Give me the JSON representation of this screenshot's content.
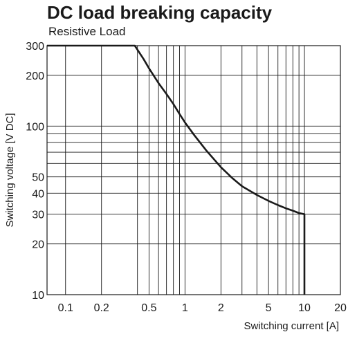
{
  "chart_data": {
    "type": "line",
    "title": "DC load breaking capacity",
    "subtitle": "Resistive Load",
    "xlabel": "Switching current [A]",
    "ylabel": "Switching voltage [V DC]",
    "xscale": "log",
    "yscale": "log",
    "xlim": [
      0.07,
      20
    ],
    "ylim": [
      10,
      300
    ],
    "grid": true,
    "x_ticks": [
      0.1,
      0.2,
      0.5,
      1,
      2,
      5,
      10,
      20
    ],
    "x_tick_labels": [
      "0.1",
      "0.2",
      "0.5",
      "1",
      "2",
      "5",
      "10",
      "20"
    ],
    "y_ticks": [
      10,
      20,
      30,
      40,
      50,
      100,
      200,
      300
    ],
    "y_tick_labels": [
      "10",
      "20",
      "30",
      "40",
      "50",
      "100",
      "200",
      "300"
    ],
    "x_gridlines": [
      0.1,
      0.2,
      0.4,
      0.5,
      0.6,
      0.7,
      0.8,
      0.9,
      1,
      2,
      3,
      4,
      5,
      6,
      7,
      8,
      9,
      10,
      20
    ],
    "y_gridlines": [
      10,
      20,
      30,
      40,
      50,
      60,
      70,
      80,
      90,
      100,
      200,
      300
    ],
    "series": [
      {
        "x": [
          0.07,
          0.1,
          0.2,
          0.3,
          0.38,
          0.45,
          0.5,
          0.6,
          0.7,
          0.8,
          0.9,
          1,
          1.2,
          1.5,
          2,
          2.5,
          3,
          4,
          5,
          6,
          7,
          8,
          9,
          10,
          10
        ],
        "y": [
          300,
          300,
          300,
          300,
          300,
          250,
          220,
          180,
          155,
          135,
          118,
          105,
          88,
          72,
          57,
          49,
          44,
          39,
          36,
          34,
          32.5,
          31.5,
          30.5,
          30,
          10
        ]
      }
    ]
  }
}
